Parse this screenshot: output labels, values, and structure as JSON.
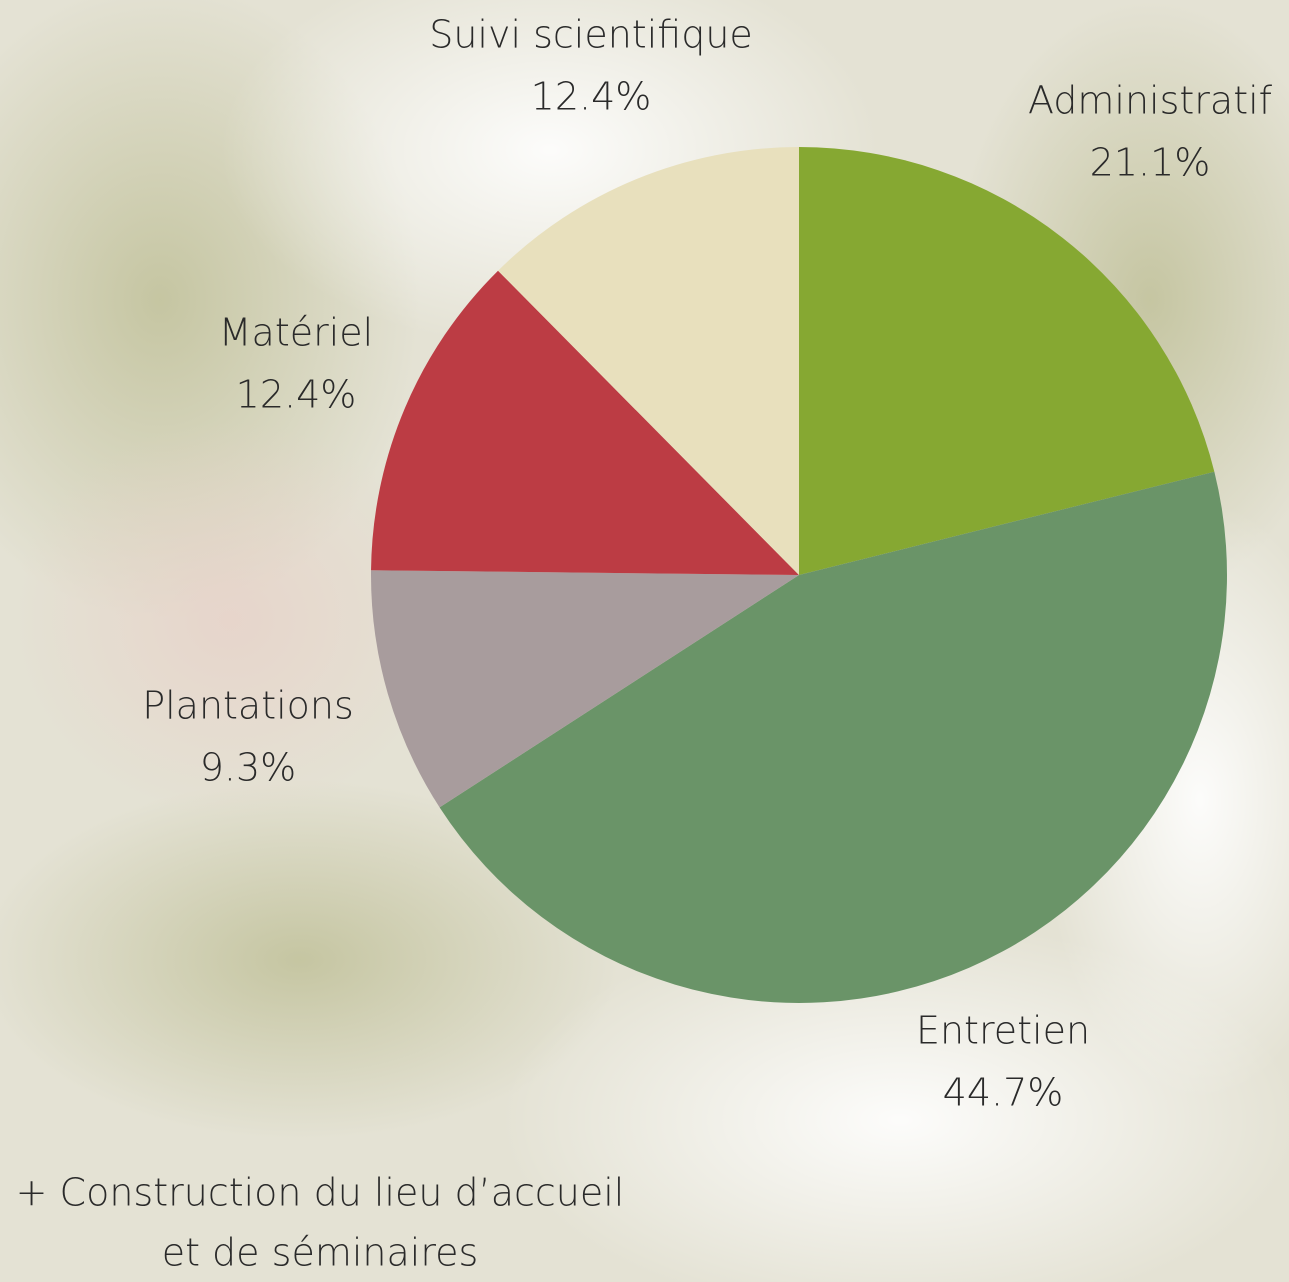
{
  "chart_data": {
    "type": "pie",
    "categories": [
      "Administratif",
      "Entretien",
      "Plantations",
      "Matériel",
      "Suivi scientifique"
    ],
    "values": [
      21.1,
      44.7,
      9.3,
      12.4,
      12.4
    ],
    "value_labels": [
      "21.1%",
      "44.7%",
      "9.3%",
      "12.4%",
      "12.4%"
    ],
    "colors": [
      "#86a832",
      "#6a9468",
      "#a89c9d",
      "#bc3c44",
      "#e8e0bd"
    ],
    "annotation": [
      "+ Construction du lieu d’accueil",
      "et de séminaires"
    ]
  }
}
